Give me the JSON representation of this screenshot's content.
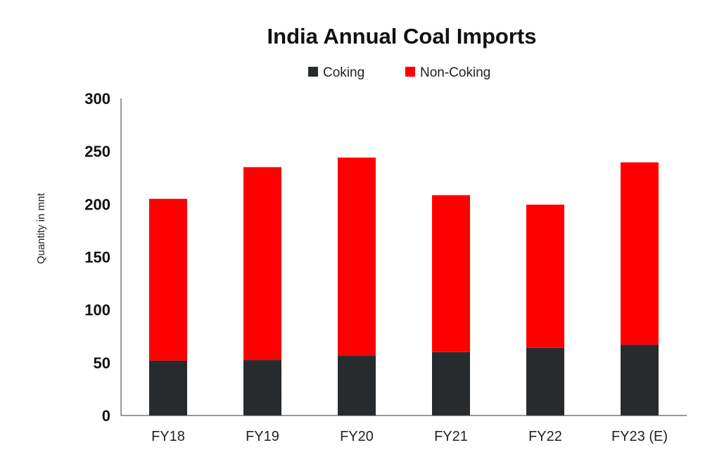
{
  "chart_data": {
    "type": "bar",
    "stacked": true,
    "title": "India Annual Coal Imports",
    "xlabel": "",
    "ylabel": "Quantity in mnt",
    "categories": [
      "FY18",
      "FY19",
      "FY20",
      "FY21",
      "FY22",
      "FY23 (E)"
    ],
    "series": [
      {
        "name": "Coking",
        "color": "#282b2d",
        "values": [
          52,
          52.5,
          56.5,
          60,
          64,
          67
        ]
      },
      {
        "name": "Non-Coking",
        "color": "#ff0000",
        "values": [
          153,
          182.5,
          187.5,
          148.5,
          135.5,
          172.5
        ]
      }
    ],
    "ylim": [
      0,
      300
    ],
    "yticks": [
      "0",
      "50",
      "100",
      "150",
      "200",
      "250",
      "300"
    ],
    "grid": false,
    "legend_position": "top-center"
  }
}
